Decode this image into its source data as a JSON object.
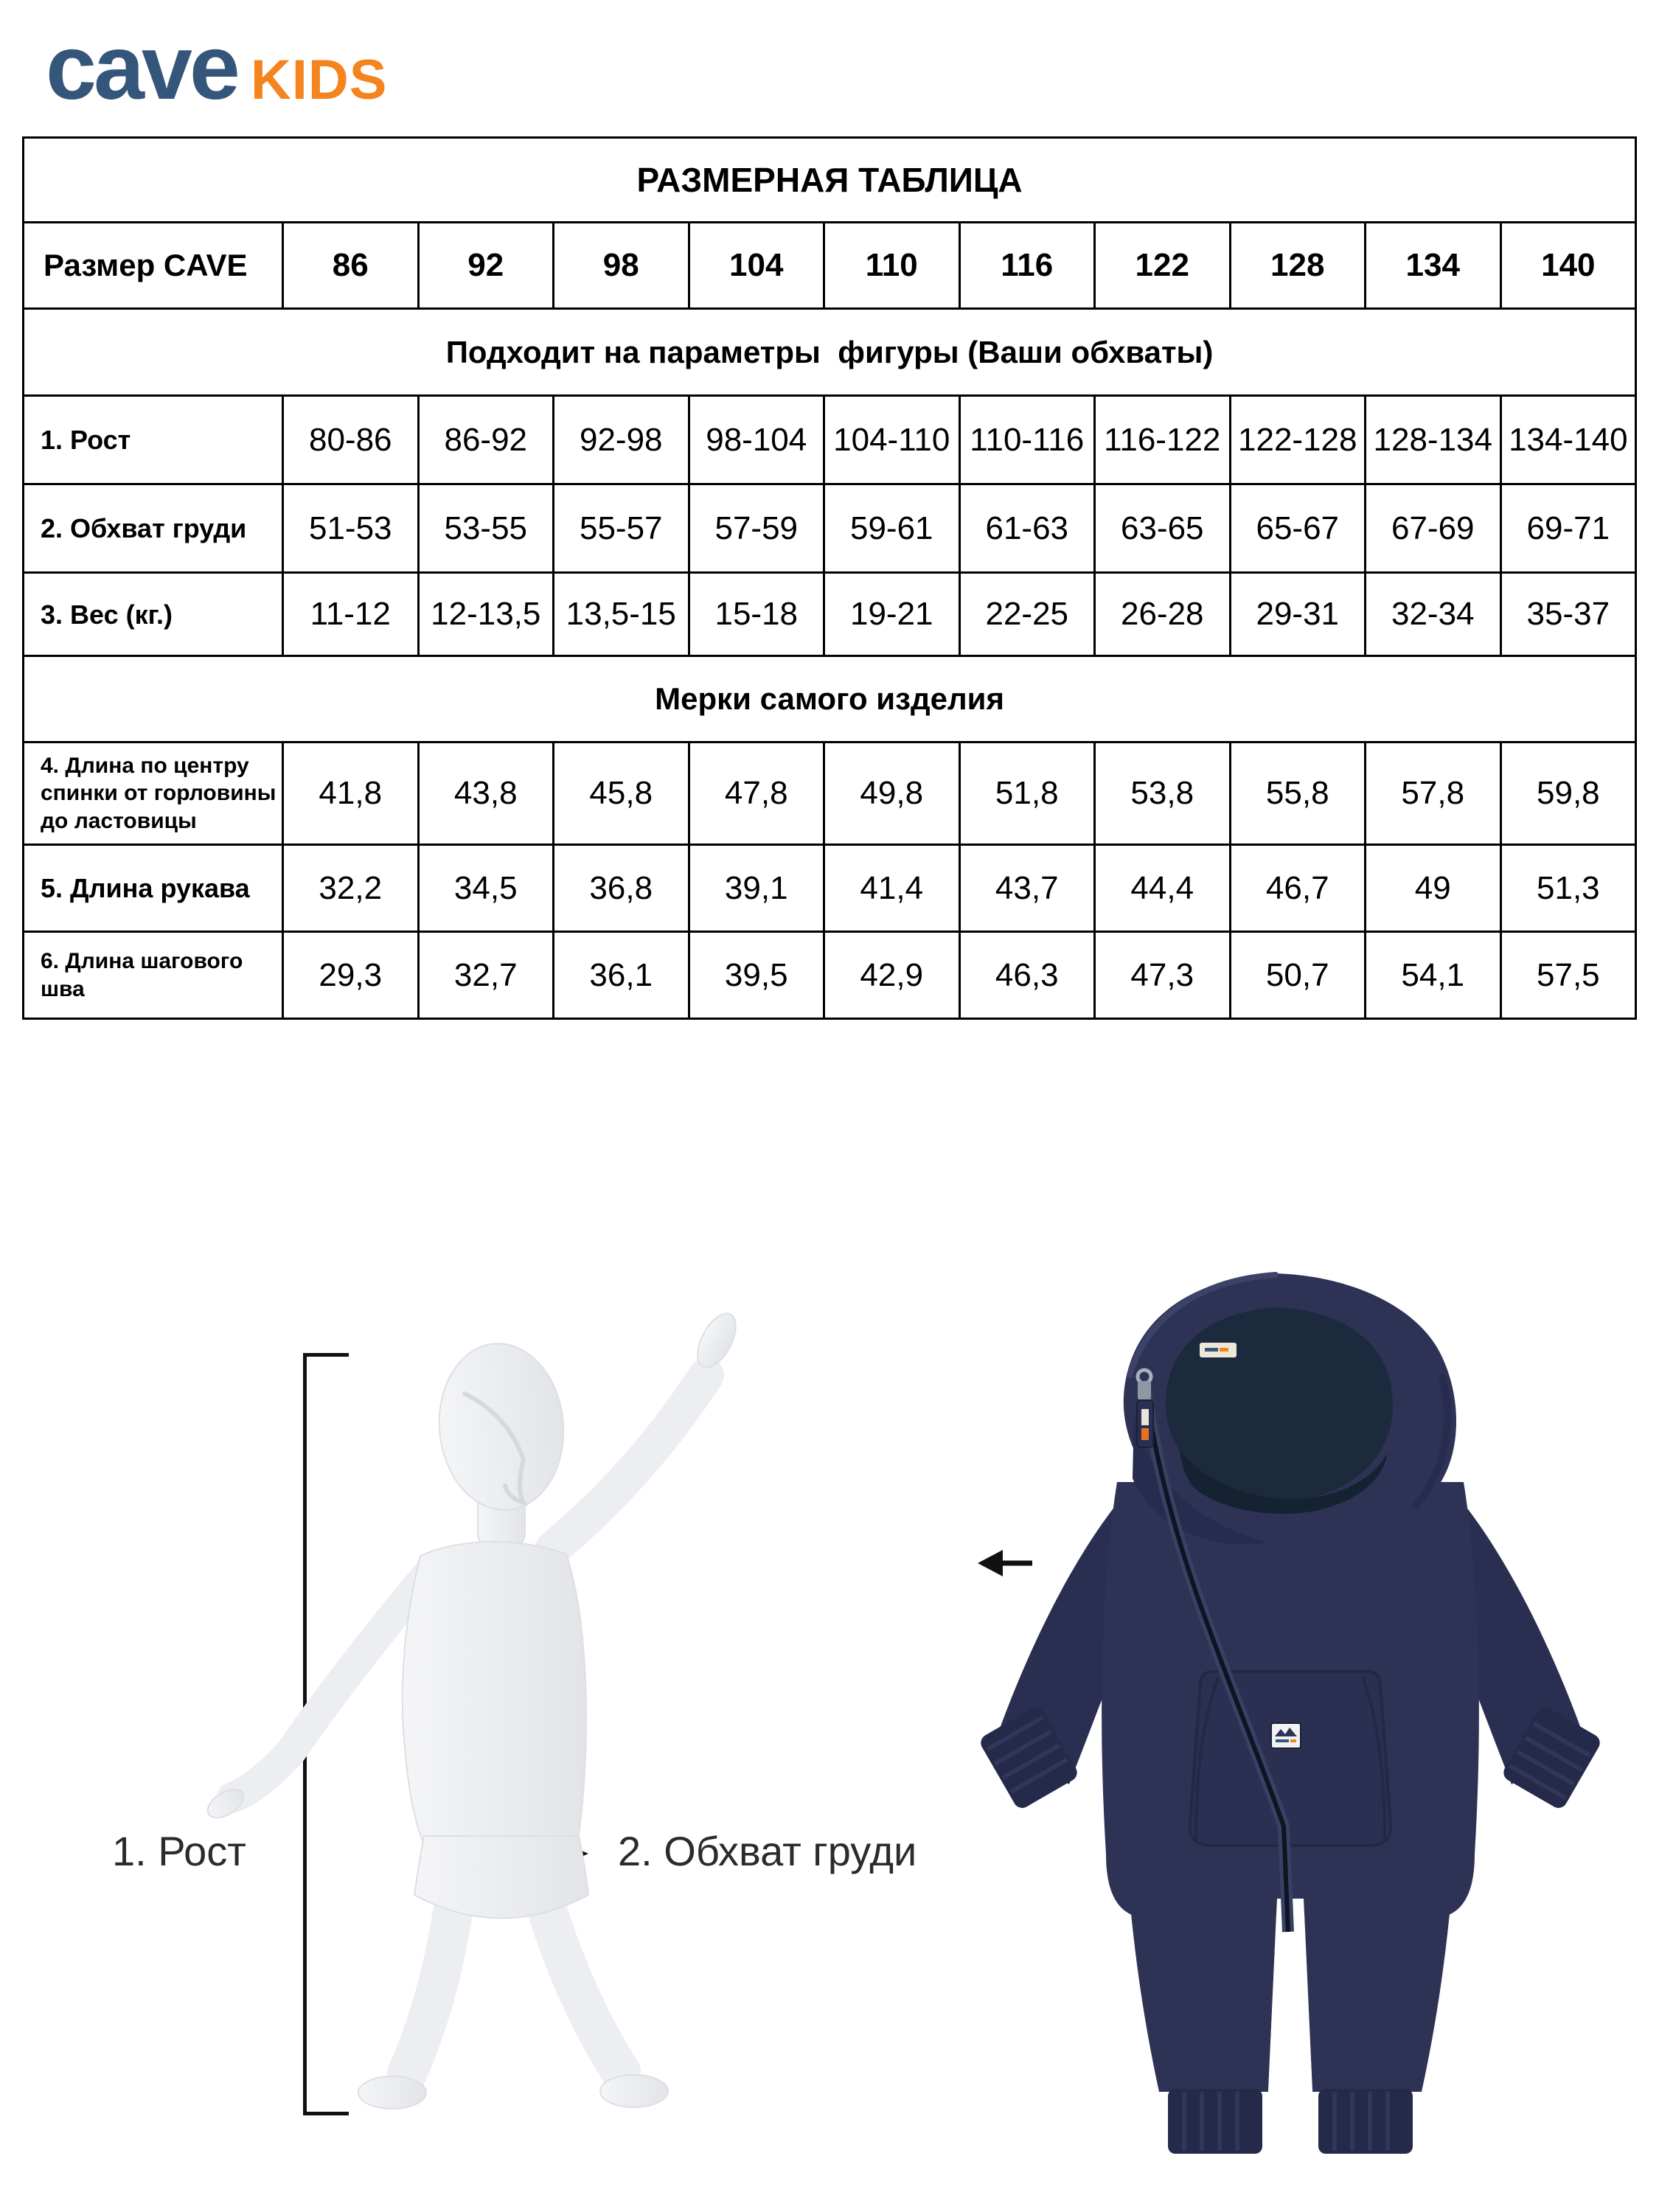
{
  "brand": {
    "name_primary": "cave",
    "name_secondary": "KIDS",
    "color_primary": "#35567B",
    "color_secondary": "#F5831F"
  },
  "table": {
    "title": "РАЗМЕРНАЯ ТАБЛИЦА",
    "size_label": "Размер CAVE",
    "sizes": [
      "86",
      "92",
      "98",
      "104",
      "110",
      "116",
      "122",
      "128",
      "134",
      "140"
    ],
    "sections": [
      {
        "header": "Подходит на параметры  фигуры (Ваши обхваты)",
        "rows": [
          {
            "label": "1. Рост",
            "values": [
              "80-86",
              "86-92",
              "92-98",
              "98-104",
              "104-110",
              "110-116",
              "116-122",
              "122-128",
              "128-134",
              "134-140"
            ]
          },
          {
            "label": "2. Обхват груди",
            "values": [
              "51-53",
              "53-55",
              "55-57",
              "57-59",
              "59-61",
              "61-63",
              "63-65",
              "65-67",
              "67-69",
              "69-71"
            ]
          },
          {
            "label": "3. Вес (кг.)",
            "values": [
              "11-12",
              "12-13,5",
              "13,5-15",
              "15-18",
              "19-21",
              "22-25",
              "26-28",
              "29-31",
              "32-34",
              "35-37"
            ]
          }
        ]
      },
      {
        "header": "Мерки самого изделия",
        "rows": [
          {
            "label": "4. Длина по центру спинки от горловины до ластовицы",
            "values": [
              "41,8",
              "43,8",
              "45,8",
              "47,8",
              "49,8",
              "51,8",
              "53,8",
              "55,8",
              "57,8",
              "59,8"
            ]
          },
          {
            "label": "5. Длина рукава",
            "values": [
              "32,2",
              "34,5",
              "36,8",
              "39,1",
              "41,4",
              "43,7",
              "44,4",
              "46,7",
              "49",
              "51,3"
            ]
          },
          {
            "label": "6. Длина шагового шва",
            "values": [
              "29,3",
              "32,7",
              "36,1",
              "39,5",
              "42,9",
              "46,3",
              "47,3",
              "50,7",
              "54,1",
              "57,5"
            ]
          }
        ]
      }
    ]
  },
  "figure": {
    "height_label": "1. Рост",
    "chest_label": "2. Обхват груди"
  },
  "garment": {
    "neck_tag_primary": "cave",
    "neck_tag_secondary": "KIDS",
    "color_main": "#2E3356"
  }
}
